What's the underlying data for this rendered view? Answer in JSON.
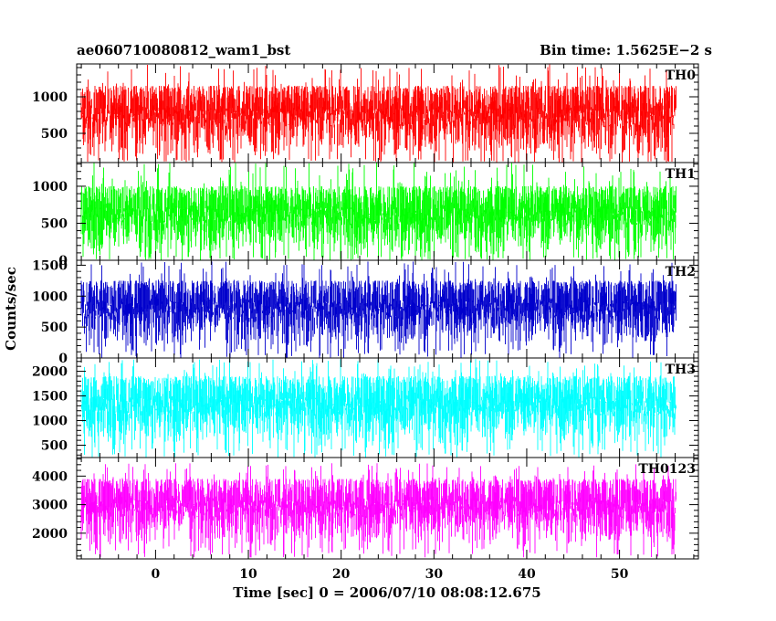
{
  "chart_data": {
    "type": "line",
    "title_left": "ae060710080812_wam1_bst",
    "title_right": "Bin time: 1.5625E−2 s",
    "xlabel": "Time [sec] 0 = 2006/07/10 08:08:12.675",
    "ylabel": "Counts/sec",
    "xlim": [
      -8.5,
      58.5
    ],
    "data_xrange": [
      -8.0,
      56.0
    ],
    "x_ticks_labeled": [
      0,
      10,
      20,
      30,
      40,
      50
    ],
    "x_tick_labels": [
      "0",
      "10",
      "20",
      "30",
      "40",
      "50"
    ],
    "x_minor_step": 2,
    "grid": false,
    "panels": [
      {
        "name": "TH0",
        "color": "#ff0000",
        "ylim": [
          100,
          1450
        ],
        "y_ticks": [
          500,
          1000
        ],
        "y_tick_labels": [
          "500",
          "1000"
        ],
        "y_minor_step": 100,
        "typical_range": [
          150,
          1150
        ],
        "max": 1450,
        "min": 100
      },
      {
        "name": "TH1",
        "color": "#00ff00",
        "ylim": [
          0,
          1320
        ],
        "y_ticks": [
          0,
          500,
          1000
        ],
        "y_tick_labels": [
          "0",
          "500",
          "1000"
        ],
        "y_minor_step": 100,
        "typical_range": [
          50,
          1000
        ],
        "max": 1320,
        "min": 0
      },
      {
        "name": "TH2",
        "color": "#0000cc",
        "ylim": [
          0,
          1580
        ],
        "y_ticks": [
          0,
          500,
          1000,
          1500
        ],
        "y_tick_labels": [
          "0",
          "500",
          "1000",
          "1500"
        ],
        "y_minor_step": 100,
        "typical_range": [
          150,
          1250
        ],
        "max": 1560,
        "min": 0
      },
      {
        "name": "TH3",
        "color": "#00ffff",
        "ylim": [
          250,
          2270
        ],
        "y_ticks": [
          500,
          1000,
          1500,
          2000
        ],
        "y_tick_labels": [
          "500",
          "1000",
          "1500",
          "2000"
        ],
        "y_minor_step": 100,
        "typical_range": [
          450,
          1900
        ],
        "max": 2250,
        "min": 250
      },
      {
        "name": "TH0123",
        "color": "#ff00ff",
        "ylim": [
          1100,
          4650
        ],
        "y_ticks": [
          2000,
          3000,
          4000
        ],
        "y_tick_labels": [
          "2000",
          "3000",
          "4000"
        ],
        "y_minor_step": 200,
        "typical_range": [
          1500,
          3900
        ],
        "max": 4450,
        "min": 1150
      }
    ]
  }
}
